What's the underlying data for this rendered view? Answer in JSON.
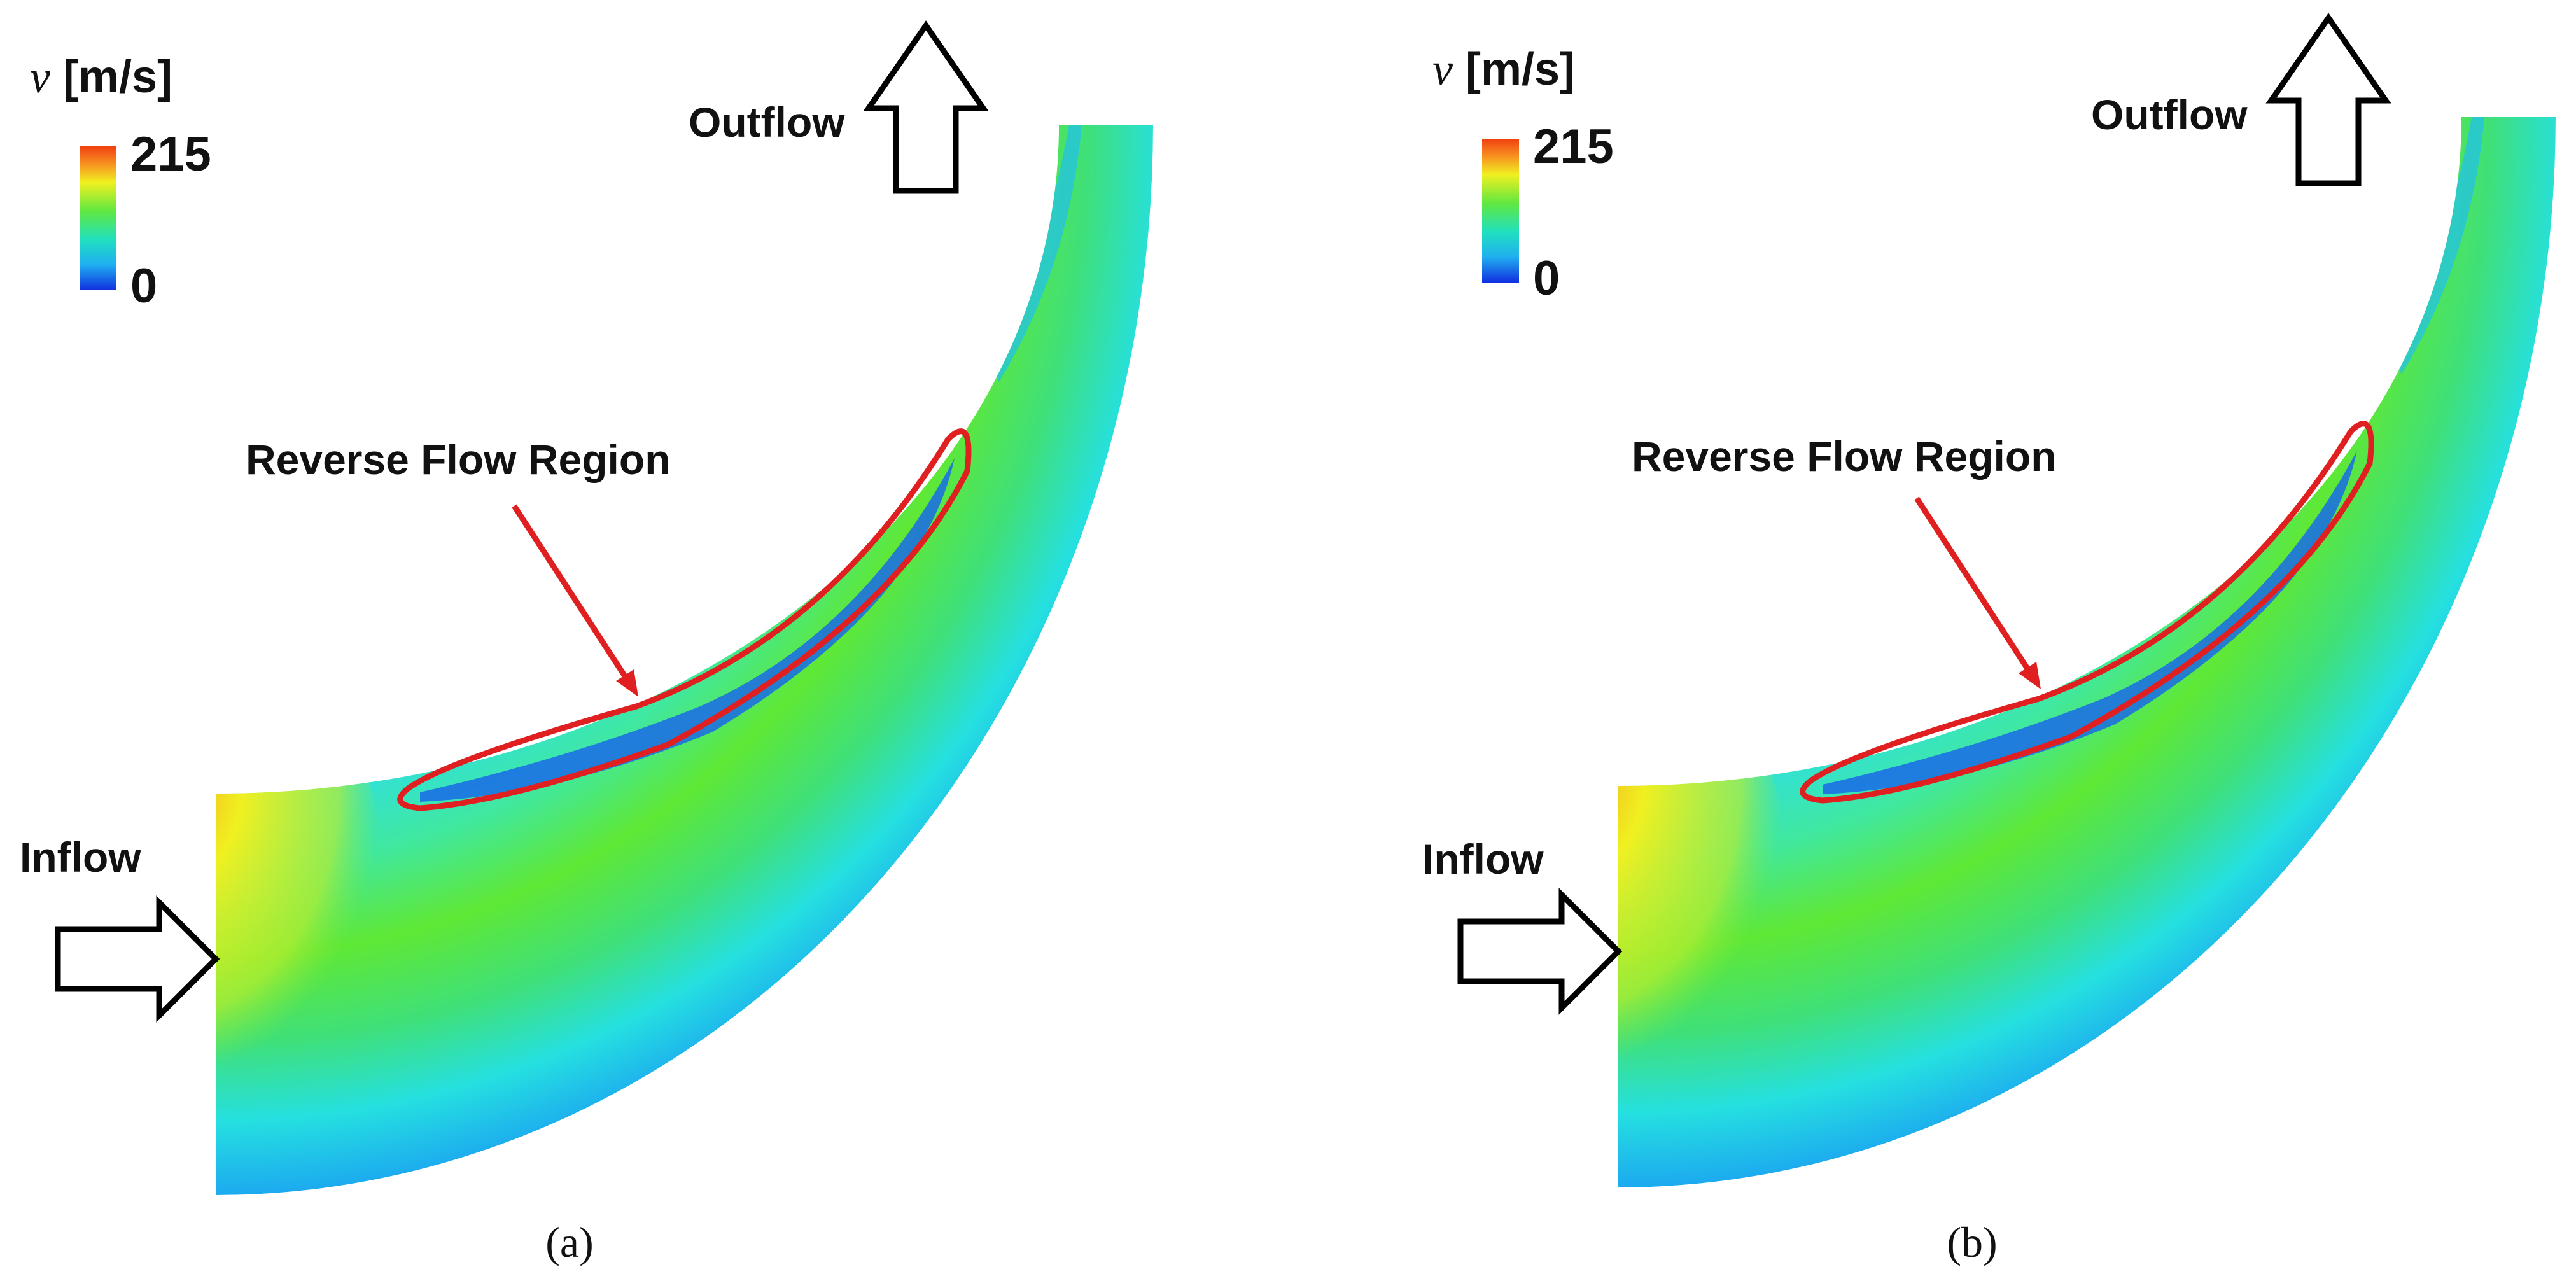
{
  "panels": [
    {
      "legend_symbol": "v",
      "legend_unit": "[m/s]",
      "legend_max": "215",
      "legend_min": "0",
      "outflow": "Outflow",
      "inflow": "Inflow",
      "annotation": "Reverse Flow Region",
      "caption": "(a)"
    },
    {
      "legend_symbol": "v",
      "legend_unit": "[m/s]",
      "legend_max": "215",
      "legend_min": "0",
      "outflow": "Outflow",
      "inflow": "Inflow",
      "annotation": "Reverse Flow Region",
      "caption": "(b)"
    }
  ]
}
